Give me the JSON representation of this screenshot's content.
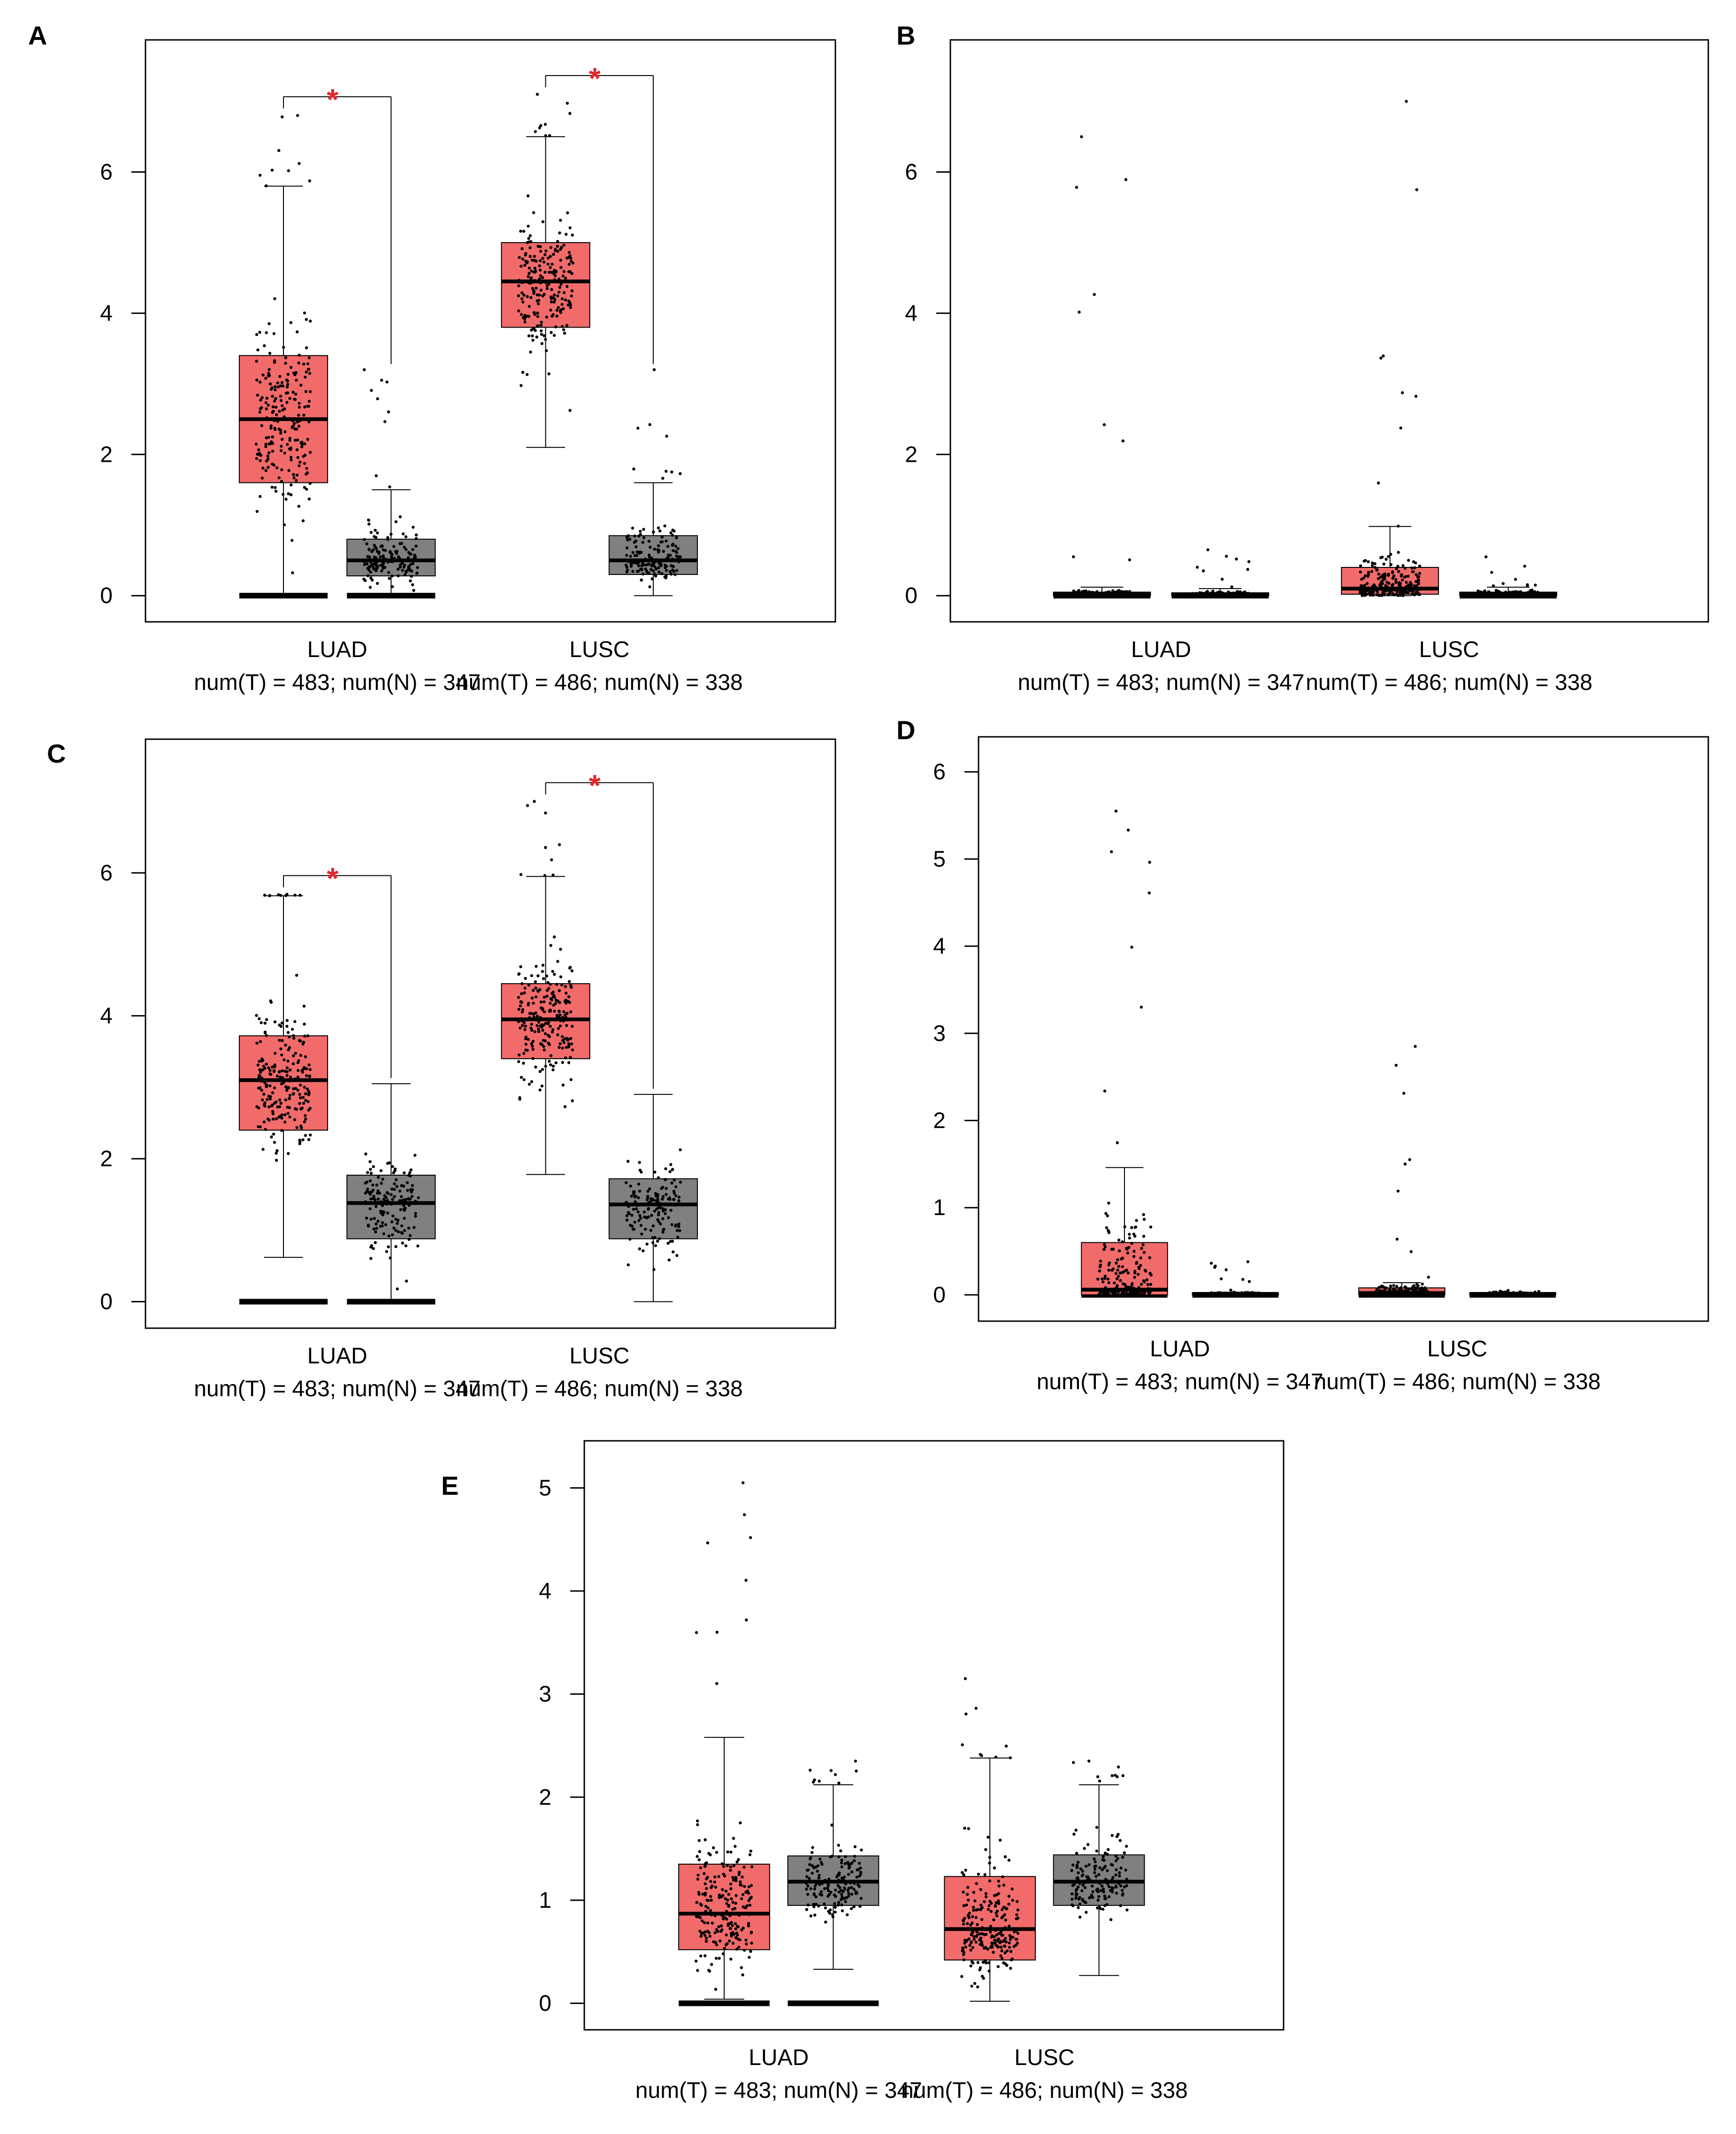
{
  "colors": {
    "tumor": "#f26b6b",
    "normal": "#808080",
    "significance": "#e8262b",
    "point": "#000000"
  },
  "chart_data": [
    {
      "type": "box",
      "panel_label": "A",
      "ylim": [
        0,
        7.5
      ],
      "yticks": [
        0,
        2,
        4,
        6
      ],
      "groups": [
        {
          "category": "LUAD",
          "counts_label": "num(T) = 483; num(N) = 347",
          "significant": true,
          "significance_mark": "*",
          "boxes": [
            {
              "series": "T",
              "n": 483,
              "q1": 1.6,
              "median": 2.5,
              "q3": 3.4,
              "whisker_low": 0.0,
              "whisker_high": 5.8,
              "ymax": 6.8,
              "zero_bar": true
            },
            {
              "series": "N",
              "n": 347,
              "q1": 0.28,
              "median": 0.5,
              "q3": 0.8,
              "whisker_low": 0.0,
              "whisker_high": 1.5,
              "ymax": 3.2,
              "zero_bar": true
            }
          ]
        },
        {
          "category": "LUSC",
          "counts_label": "num(T) = 486; num(N) = 338",
          "significant": true,
          "significance_mark": "*",
          "boxes": [
            {
              "series": "T",
              "n": 486,
              "q1": 3.8,
              "median": 4.45,
              "q3": 5.0,
              "whisker_low": 2.1,
              "whisker_high": 6.5,
              "ymax": 7.1,
              "zero_bar": false
            },
            {
              "series": "N",
              "n": 338,
              "q1": 0.3,
              "median": 0.5,
              "q3": 0.85,
              "whisker_low": 0.0,
              "whisker_high": 1.6,
              "ymax": 3.2,
              "zero_bar": false
            }
          ]
        }
      ]
    },
    {
      "type": "box",
      "panel_label": "B",
      "ylim": [
        0,
        7.5
      ],
      "yticks": [
        0,
        2,
        4,
        6
      ],
      "groups": [
        {
          "category": "LUAD",
          "counts_label": "num(T) = 483; num(N) = 347",
          "significant": false,
          "significance_mark": "",
          "boxes": [
            {
              "series": "T",
              "n": 483,
              "q1": 0.0,
              "median": 0.02,
              "q3": 0.05,
              "whisker_low": 0.0,
              "whisker_high": 0.12,
              "ymax": 6.5,
              "zero_bar": true
            },
            {
              "series": "N",
              "n": 347,
              "q1": 0.0,
              "median": 0.02,
              "q3": 0.04,
              "whisker_low": 0.0,
              "whisker_high": 0.1,
              "ymax": 0.65,
              "zero_bar": true
            }
          ]
        },
        {
          "category": "LUSC",
          "counts_label": "num(T) = 486; num(N) = 338",
          "significant": false,
          "significance_mark": "",
          "boxes": [
            {
              "series": "T",
              "n": 486,
              "q1": 0.02,
              "median": 0.1,
              "q3": 0.4,
              "whisker_low": 0.0,
              "whisker_high": 0.98,
              "ymax": 7.0,
              "zero_bar": false
            },
            {
              "series": "N",
              "n": 338,
              "q1": 0.0,
              "median": 0.02,
              "q3": 0.05,
              "whisker_low": 0.0,
              "whisker_high": 0.12,
              "ymax": 0.55,
              "zero_bar": true
            }
          ]
        }
      ]
    },
    {
      "type": "box",
      "panel_label": "C",
      "ylim": [
        0,
        7.5
      ],
      "yticks": [
        0,
        2,
        4,
        6
      ],
      "groups": [
        {
          "category": "LUAD",
          "counts_label": "num(T) = 483; num(N) = 347",
          "significant": true,
          "significance_mark": "*",
          "boxes": [
            {
              "series": "T",
              "n": 483,
              "q1": 2.4,
              "median": 3.1,
              "q3": 3.72,
              "whisker_low": 0.62,
              "whisker_high": 5.68,
              "ymax": 5.7,
              "zero_bar": true
            },
            {
              "series": "N",
              "n": 347,
              "q1": 0.88,
              "median": 1.38,
              "q3": 1.77,
              "whisker_low": 0.0,
              "whisker_high": 3.05,
              "ymax": 3.05,
              "zero_bar": true
            }
          ]
        },
        {
          "category": "LUSC",
          "counts_label": "num(T) = 486; num(N) = 338",
          "significant": true,
          "significance_mark": "*",
          "boxes": [
            {
              "series": "T",
              "n": 486,
              "q1": 3.4,
              "median": 3.95,
              "q3": 4.45,
              "whisker_low": 1.78,
              "whisker_high": 5.95,
              "ymax": 7.0,
              "zero_bar": false
            },
            {
              "series": "N",
              "n": 338,
              "q1": 0.88,
              "median": 1.36,
              "q3": 1.72,
              "whisker_low": 0.0,
              "whisker_high": 2.9,
              "ymax": 2.9,
              "zero_bar": false
            }
          ]
        }
      ]
    },
    {
      "type": "box",
      "panel_label": "D",
      "ylim": [
        0,
        6.1
      ],
      "yticks": [
        0,
        1,
        2,
        3,
        4,
        5,
        6
      ],
      "groups": [
        {
          "category": "LUAD",
          "counts_label": "num(T) = 483; num(N) = 347",
          "significant": false,
          "significance_mark": "",
          "boxes": [
            {
              "series": "T",
              "n": 483,
              "q1": 0.0,
              "median": 0.06,
              "q3": 0.6,
              "whisker_low": 0.0,
              "whisker_high": 1.46,
              "ymax": 5.55,
              "zero_bar": true
            },
            {
              "series": "N",
              "n": 347,
              "q1": 0.0,
              "median": 0.01,
              "q3": 0.02,
              "whisker_low": 0.0,
              "whisker_high": 0.03,
              "ymax": 0.38,
              "zero_bar": true
            }
          ]
        },
        {
          "category": "LUSC",
          "counts_label": "num(T) = 486; num(N) = 338",
          "significant": false,
          "significance_mark": "",
          "boxes": [
            {
              "series": "T",
              "n": 486,
              "q1": 0.0,
              "median": 0.02,
              "q3": 0.08,
              "whisker_low": 0.0,
              "whisker_high": 0.14,
              "ymax": 2.85,
              "zero_bar": true
            },
            {
              "series": "N",
              "n": 338,
              "q1": 0.0,
              "median": 0.01,
              "q3": 0.02,
              "whisker_low": 0.0,
              "whisker_high": 0.03,
              "ymax": 0.05,
              "zero_bar": true
            }
          ]
        }
      ]
    },
    {
      "type": "box",
      "panel_label": "E",
      "ylim": [
        0,
        5.2
      ],
      "yticks": [
        0,
        1,
        2,
        3,
        4,
        5
      ],
      "groups": [
        {
          "category": "LUAD",
          "counts_label": "num(T) = 483; num(N) = 347",
          "significant": false,
          "significance_mark": "",
          "boxes": [
            {
              "series": "T",
              "n": 483,
              "q1": 0.52,
              "median": 0.87,
              "q3": 1.35,
              "whisker_low": 0.04,
              "whisker_high": 2.58,
              "ymax": 5.05,
              "zero_bar": true
            },
            {
              "series": "N",
              "n": 347,
              "q1": 0.95,
              "median": 1.18,
              "q3": 1.43,
              "whisker_low": 0.33,
              "whisker_high": 2.12,
              "ymax": 2.35,
              "zero_bar": true
            }
          ]
        },
        {
          "category": "LUSC",
          "counts_label": "num(T) = 486; num(N) = 338",
          "significant": false,
          "significance_mark": "",
          "boxes": [
            {
              "series": "T",
              "n": 486,
              "q1": 0.42,
              "median": 0.72,
              "q3": 1.23,
              "whisker_low": 0.02,
              "whisker_high": 2.38,
              "ymax": 3.15,
              "zero_bar": false
            },
            {
              "series": "N",
              "n": 338,
              "q1": 0.95,
              "median": 1.18,
              "q3": 1.44,
              "whisker_low": 0.27,
              "whisker_high": 2.12,
              "ymax": 2.35,
              "zero_bar": false
            }
          ]
        }
      ]
    }
  ]
}
